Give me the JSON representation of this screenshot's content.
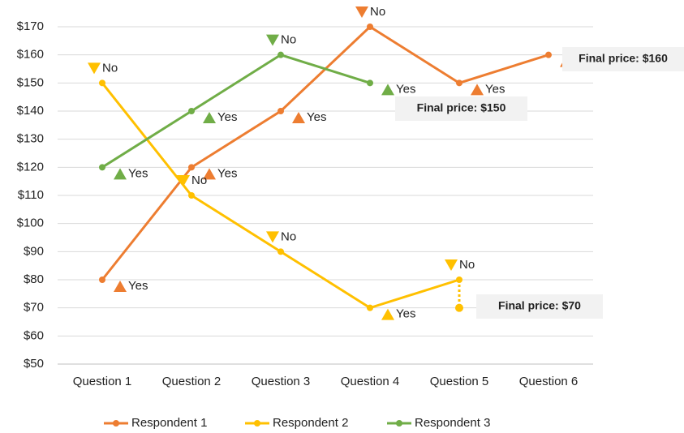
{
  "chart_data": {
    "type": "line",
    "categories": [
      "Question 1",
      "Question 2",
      "Question 3",
      "Question 4",
      "Question 5",
      "Question 6"
    ],
    "ylim": [
      50,
      170
    ],
    "yticks": [
      {
        "value": 50,
        "label": "$50"
      },
      {
        "value": 60,
        "label": "$60"
      },
      {
        "value": 70,
        "label": "$70"
      },
      {
        "value": 80,
        "label": "$80"
      },
      {
        "value": 90,
        "label": "$90"
      },
      {
        "value": 100,
        "label": "$100"
      },
      {
        "value": 110,
        "label": "$110"
      },
      {
        "value": 120,
        "label": "$120"
      },
      {
        "value": 130,
        "label": "$130"
      },
      {
        "value": 140,
        "label": "$140"
      },
      {
        "value": 150,
        "label": "$150"
      },
      {
        "value": 160,
        "label": "$160"
      },
      {
        "value": 170,
        "label": "$170"
      }
    ],
    "grid": true,
    "legend": "bottom",
    "series": [
      {
        "name": "Respondent 1",
        "color": "#ED7D31",
        "values": [
          80,
          120,
          140,
          170,
          150,
          160
        ],
        "answers": [
          "Yes",
          "Yes",
          "Yes",
          "No",
          "Yes",
          "Yes"
        ],
        "final_value": 160,
        "final_label": "Final price: $160"
      },
      {
        "name": "Respondent 2",
        "color": "#FFC000",
        "values": [
          150,
          110,
          90,
          70,
          80,
          null
        ],
        "answers": [
          "No",
          "No",
          "No",
          "Yes",
          "No",
          null
        ],
        "final_value": 70,
        "final_label": "Final price: $70"
      },
      {
        "name": "Respondent 3",
        "color": "#70AD47",
        "values": [
          120,
          140,
          160,
          150,
          null,
          null
        ],
        "answers": [
          "Yes",
          "Yes",
          "No",
          "Yes",
          null,
          null
        ],
        "final_value": 150,
        "final_label": "Final price: $150"
      }
    ]
  }
}
